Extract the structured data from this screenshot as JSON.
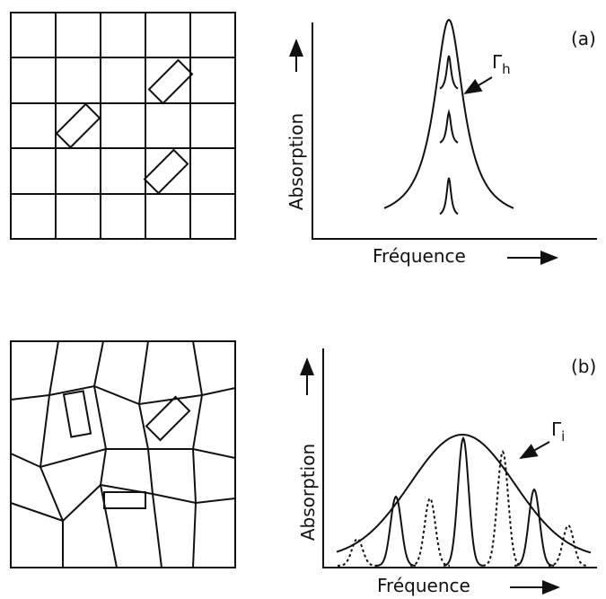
{
  "panels": [
    {
      "label": "(a)",
      "y_axis": "Absorption",
      "x_axis": "Fréquence",
      "width_label": {
        "symbol": "Γ",
        "subscript": "h"
      }
    },
    {
      "label": "(b)",
      "y_axis": "Absorption",
      "x_axis": "Fréquence",
      "width_label": {
        "symbol": "Γ",
        "subscript": "i"
      }
    }
  ]
}
